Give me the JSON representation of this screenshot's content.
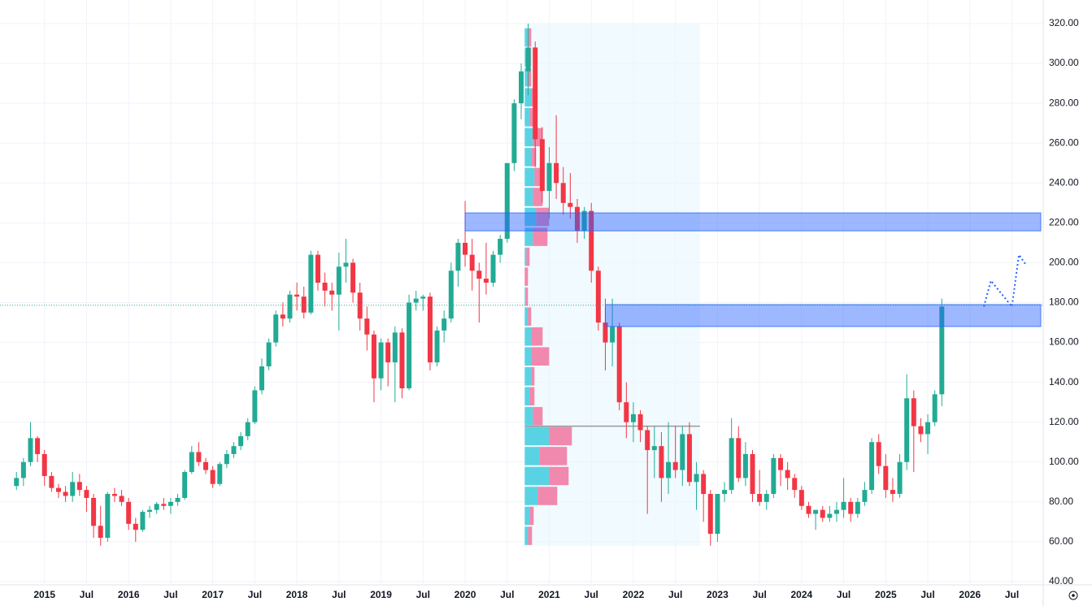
{
  "chart_data": {
    "type": "candlestick",
    "x": [
      "2014-09",
      "2014-10",
      "2014-11",
      "2014-12",
      "2015-01",
      "2015-02",
      "2015-03",
      "2015-04",
      "2015-05",
      "2015-06",
      "2015-07",
      "2015-08",
      "2015-09",
      "2015-10",
      "2015-11",
      "2015-12",
      "2016-01",
      "2016-02",
      "2016-03",
      "2016-04",
      "2016-05",
      "2016-06",
      "2016-07",
      "2016-08",
      "2016-09",
      "2016-10",
      "2016-11",
      "2016-12",
      "2017-01",
      "2017-02",
      "2017-03",
      "2017-04",
      "2017-05",
      "2017-06",
      "2017-07",
      "2017-08",
      "2017-09",
      "2017-10",
      "2017-11",
      "2017-12",
      "2018-01",
      "2018-02",
      "2018-03",
      "2018-04",
      "2018-05",
      "2018-06",
      "2018-07",
      "2018-08",
      "2018-09",
      "2018-10",
      "2018-11",
      "2018-12",
      "2019-01",
      "2019-02",
      "2019-03",
      "2019-04",
      "2019-05",
      "2019-06",
      "2019-07",
      "2019-08",
      "2019-09",
      "2019-10",
      "2019-11",
      "2019-12",
      "2020-01",
      "2020-02",
      "2020-03",
      "2020-04",
      "2020-05",
      "2020-06",
      "2020-07",
      "2020-08",
      "2020-09",
      "2020-10",
      "2020-11",
      "2020-12",
      "2021-01",
      "2021-02",
      "2021-03",
      "2021-04",
      "2021-05",
      "2021-06",
      "2021-07",
      "2021-08",
      "2021-09",
      "2021-10",
      "2021-11",
      "2021-12",
      "2022-01",
      "2022-02",
      "2022-03",
      "2022-04",
      "2022-05",
      "2022-06",
      "2022-07",
      "2022-08",
      "2022-09",
      "2022-10",
      "2022-11",
      "2022-12",
      "2023-01",
      "2023-02",
      "2023-03",
      "2023-04",
      "2023-05",
      "2023-06",
      "2023-07",
      "2023-08",
      "2023-09",
      "2023-10",
      "2023-11",
      "2023-12",
      "2024-01",
      "2024-02",
      "2024-03",
      "2024-04",
      "2024-05",
      "2024-06",
      "2024-07",
      "2024-08",
      "2024-09",
      "2024-10",
      "2024-11",
      "2024-12",
      "2025-01",
      "2025-02",
      "2025-03",
      "2025-04",
      "2025-05",
      "2025-06",
      "2025-07",
      "2025-08",
      "2025-09"
    ],
    "ohlc": [
      [
        88,
        95,
        86,
        92
      ],
      [
        92,
        102,
        88,
        100
      ],
      [
        100,
        120,
        98,
        112
      ],
      [
        112,
        113,
        100,
        104
      ],
      [
        104,
        106,
        88,
        93
      ],
      [
        93,
        95,
        85,
        87
      ],
      [
        87,
        89,
        82,
        85
      ],
      [
        85,
        88,
        80,
        83
      ],
      [
        83,
        95,
        80,
        90
      ],
      [
        90,
        94,
        83,
        86
      ],
      [
        86,
        88,
        75,
        82
      ],
      [
        82,
        84,
        62,
        68
      ],
      [
        68,
        78,
        58,
        62
      ],
      [
        62,
        85,
        60,
        84
      ],
      [
        84,
        87,
        80,
        83
      ],
      [
        83,
        86,
        78,
        80
      ],
      [
        80,
        82,
        66,
        69
      ],
      [
        69,
        72,
        60,
        66
      ],
      [
        66,
        76,
        65,
        75
      ],
      [
        75,
        78,
        72,
        76
      ],
      [
        76,
        80,
        74,
        79
      ],
      [
        79,
        82,
        76,
        78
      ],
      [
        78,
        82,
        74,
        80
      ],
      [
        80,
        84,
        78,
        82
      ],
      [
        82,
        96,
        81,
        95
      ],
      [
        95,
        108,
        94,
        105
      ],
      [
        105,
        110,
        98,
        100
      ],
      [
        100,
        102,
        94,
        96
      ],
      [
        96,
        98,
        87,
        89
      ],
      [
        89,
        100,
        88,
        99
      ],
      [
        99,
        106,
        97,
        104
      ],
      [
        104,
        110,
        102,
        108
      ],
      [
        108,
        115,
        106,
        113
      ],
      [
        113,
        122,
        111,
        120
      ],
      [
        120,
        138,
        119,
        136
      ],
      [
        136,
        152,
        134,
        148
      ],
      [
        148,
        162,
        146,
        160
      ],
      [
        160,
        176,
        158,
        174
      ],
      [
        174,
        180,
        168,
        172
      ],
      [
        172,
        186,
        170,
        184
      ],
      [
        184,
        190,
        176,
        183
      ],
      [
        183,
        188,
        172,
        175
      ],
      [
        175,
        206,
        174,
        204
      ],
      [
        204,
        206,
        186,
        190
      ],
      [
        190,
        195,
        178,
        186
      ],
      [
        186,
        190,
        176,
        184
      ],
      [
        184,
        205,
        166,
        198
      ],
      [
        198,
        212,
        190,
        200
      ],
      [
        200,
        202,
        180,
        185
      ],
      [
        185,
        190,
        166,
        172
      ],
      [
        172,
        178,
        156,
        164
      ],
      [
        164,
        166,
        130,
        142
      ],
      [
        142,
        162,
        136,
        160
      ],
      [
        160,
        162,
        138,
        150
      ],
      [
        150,
        168,
        130,
        165
      ],
      [
        165,
        167,
        132,
        137
      ],
      [
        137,
        184,
        136,
        180
      ],
      [
        180,
        186,
        176,
        182
      ],
      [
        182,
        184,
        176,
        183
      ],
      [
        183,
        185,
        146,
        150
      ],
      [
        150,
        168,
        148,
        166
      ],
      [
        166,
        176,
        160,
        172
      ],
      [
        172,
        200,
        170,
        196
      ],
      [
        196,
        212,
        188,
        210
      ],
      [
        210,
        231,
        198,
        204
      ],
      [
        204,
        212,
        186,
        196
      ],
      [
        196,
        200,
        170,
        192
      ],
      [
        192,
        210,
        184,
        190
      ],
      [
        190,
        206,
        188,
        204
      ],
      [
        204,
        214,
        200,
        212
      ],
      [
        212,
        250,
        210,
        250
      ],
      [
        250,
        282,
        246,
        280
      ],
      [
        280,
        300,
        272,
        296
      ],
      [
        296,
        320,
        284,
        308
      ],
      [
        308,
        311,
        248,
        262
      ],
      [
        262,
        268,
        230,
        236
      ],
      [
        236,
        258,
        222,
        250
      ],
      [
        250,
        274,
        232,
        240
      ],
      [
        240,
        248,
        224,
        230
      ],
      [
        230,
        245,
        222,
        228
      ],
      [
        228,
        232,
        210,
        216
      ],
      [
        216,
        228,
        212,
        226
      ],
      [
        226,
        230,
        190,
        196
      ],
      [
        196,
        198,
        166,
        170
      ],
      [
        170,
        182,
        146,
        160
      ],
      [
        160,
        182,
        148,
        168
      ],
      [
        168,
        170,
        126,
        130
      ],
      [
        130,
        140,
        112,
        120
      ],
      [
        120,
        130,
        110,
        124
      ],
      [
        124,
        126,
        110,
        116
      ],
      [
        116,
        118,
        74,
        106
      ],
      [
        106,
        118,
        92,
        108
      ],
      [
        108,
        115,
        80,
        92
      ],
      [
        92,
        120,
        84,
        100
      ],
      [
        100,
        118,
        92,
        96
      ],
      [
        96,
        118,
        88,
        114
      ],
      [
        114,
        120,
        88,
        90
      ],
      [
        90,
        100,
        76,
        94
      ],
      [
        94,
        96,
        70,
        84
      ],
      [
        84,
        86,
        58,
        64
      ],
      [
        64,
        84,
        60,
        84
      ],
      [
        84,
        90,
        80,
        86
      ],
      [
        86,
        122,
        84,
        112
      ],
      [
        112,
        118,
        90,
        92
      ],
      [
        92,
        110,
        88,
        104
      ],
      [
        104,
        106,
        80,
        84
      ],
      [
        84,
        96,
        78,
        80
      ],
      [
        80,
        86,
        76,
        84
      ],
      [
        84,
        104,
        82,
        102
      ],
      [
        102,
        104,
        88,
        96
      ],
      [
        96,
        100,
        86,
        92
      ],
      [
        92,
        94,
        82,
        86
      ],
      [
        86,
        88,
        76,
        78
      ],
      [
        78,
        80,
        72,
        74
      ],
      [
        74,
        76,
        66,
        76
      ],
      [
        76,
        78,
        70,
        72
      ],
      [
        72,
        78,
        70,
        74
      ],
      [
        74,
        80,
        70,
        76
      ],
      [
        76,
        92,
        72,
        80
      ],
      [
        80,
        82,
        70,
        74
      ],
      [
        74,
        82,
        72,
        80
      ],
      [
        80,
        90,
        78,
        86
      ],
      [
        86,
        112,
        84,
        110
      ],
      [
        110,
        114,
        94,
        98
      ],
      [
        98,
        104,
        82,
        86
      ],
      [
        86,
        92,
        80,
        84
      ],
      [
        84,
        104,
        82,
        100
      ],
      [
        100,
        144,
        96,
        132
      ],
      [
        132,
        136,
        95,
        118
      ],
      [
        118,
        122,
        110,
        114
      ],
      [
        114,
        124,
        104,
        120
      ],
      [
        120,
        136,
        118,
        134
      ],
      [
        134,
        182,
        128,
        178
      ]
    ],
    "up_color": "#22ab94",
    "down_color": "#f23645",
    "xlim": [
      "2014-07",
      "2026-11"
    ],
    "xticks": [
      {
        "value": "2015-01",
        "label": "2015"
      },
      {
        "value": "2015-07",
        "label": "Jul"
      },
      {
        "value": "2016-01",
        "label": "2016"
      },
      {
        "value": "2016-07",
        "label": "Jul"
      },
      {
        "value": "2017-01",
        "label": "2017"
      },
      {
        "value": "2017-07",
        "label": "Jul"
      },
      {
        "value": "2018-01",
        "label": "2018"
      },
      {
        "value": "2018-07",
        "label": "Jul"
      },
      {
        "value": "2019-01",
        "label": "2019"
      },
      {
        "value": "2019-07",
        "label": "Jul"
      },
      {
        "value": "2020-01",
        "label": "2020"
      },
      {
        "value": "2020-07",
        "label": "Jul"
      },
      {
        "value": "2021-01",
        "label": "2021"
      },
      {
        "value": "2021-07",
        "label": "Jul"
      },
      {
        "value": "2022-01",
        "label": "2022"
      },
      {
        "value": "2022-07",
        "label": "Jul"
      },
      {
        "value": "2023-01",
        "label": "2023"
      },
      {
        "value": "2023-07",
        "label": "Jul"
      },
      {
        "value": "2024-01",
        "label": "2024"
      },
      {
        "value": "2024-07",
        "label": "Jul"
      },
      {
        "value": "2025-01",
        "label": "2025"
      },
      {
        "value": "2025-07",
        "label": "Jul"
      },
      {
        "value": "2026-01",
        "label": "2026"
      },
      {
        "value": "2026-07",
        "label": "Jul"
      }
    ],
    "ylim": [
      40,
      320
    ],
    "yticks": [
      {
        "value": 320,
        "label": "320.00"
      },
      {
        "value": 300,
        "label": "300.00"
      },
      {
        "value": 280,
        "label": "280.00"
      },
      {
        "value": 260,
        "label": "260.00"
      },
      {
        "value": 240,
        "label": "240.00"
      },
      {
        "value": 220,
        "label": "220.00"
      },
      {
        "value": 200,
        "label": "200.00"
      },
      {
        "value": 180,
        "label": "180.00"
      },
      {
        "value": 160,
        "label": "160.00"
      },
      {
        "value": 140,
        "label": "140.00"
      },
      {
        "value": 120,
        "label": "120.00"
      },
      {
        "value": 100,
        "label": "100.00"
      },
      {
        "value": 80,
        "label": "80.00"
      },
      {
        "value": 60,
        "label": "60.00"
      },
      {
        "value": 40,
        "label": "40.00"
      }
    ],
    "grid": true,
    "current_price": 178.7,
    "zones": [
      {
        "start": "2020-01",
        "from": 216,
        "to": 225
      },
      {
        "start": "2021-09",
        "from": 168,
        "to": 179
      }
    ],
    "range": {
      "start": "2020-10",
      "end": "2022-10",
      "poc": 118
    },
    "volume_profile": {
      "bins": [
        58,
        68,
        78,
        88,
        98,
        108,
        118,
        128,
        138,
        148,
        158,
        168,
        178,
        188,
        198,
        208,
        218,
        228,
        238,
        248,
        258,
        268,
        278,
        288,
        298,
        308,
        318
      ],
      "up": [
        4,
        6,
        16,
        30,
        18,
        30,
        10,
        6,
        8,
        8,
        8,
        4,
        1,
        0,
        2,
        10,
        14,
        10,
        12,
        8,
        10,
        6,
        8,
        4,
        4,
        4
      ],
      "down": [
        5,
        5,
        24,
        24,
        34,
        28,
        12,
        6,
        4,
        22,
        14,
        4,
        3,
        4,
        4,
        18,
        16,
        12,
        10,
        6,
        12,
        6,
        6,
        4,
        4,
        4
      ]
    },
    "projection": {
      "x": [
        "2026-03",
        "2026-04",
        "2026-07",
        "2026-08",
        "2026-09"
      ],
      "values": [
        178,
        191,
        178,
        204,
        199
      ]
    }
  }
}
